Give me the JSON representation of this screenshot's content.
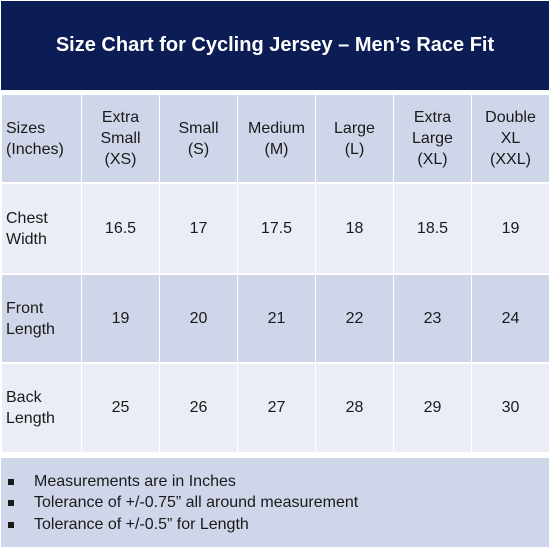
{
  "title": "Size Chart for Cycling Jersey – Men’s Race Fit",
  "table": {
    "corner_label": "Sizes\n(Inches)",
    "columns": [
      "Extra\nSmall\n(XS)",
      "Small\n(S)",
      "Medium\n(M)",
      "Large\n(L)",
      "Extra\nLarge\n(XL)",
      "Double\nXL\n(XXL)"
    ],
    "rows": [
      {
        "label": "Chest\nWidth",
        "values": [
          "16.5",
          "17",
          "17.5",
          "18",
          "18.5",
          "19"
        ]
      },
      {
        "label": "Front\nLength",
        "values": [
          "19",
          "20",
          "21",
          "22",
          "23",
          "24"
        ]
      },
      {
        "label": "Back\nLength",
        "values": [
          "25",
          "26",
          "27",
          "28",
          "29",
          "30"
        ]
      }
    ]
  },
  "notes": [
    "Measurements are in Inches",
    "Tolerance of +/-0.75” all around measurement",
    "Tolerance of +/-0.5” for Length"
  ],
  "colors": {
    "title_background": "#0c1d56",
    "header_row": "#d0d6ea",
    "row_light": "#ebedf6",
    "row_dark": "#d0d6ea"
  }
}
